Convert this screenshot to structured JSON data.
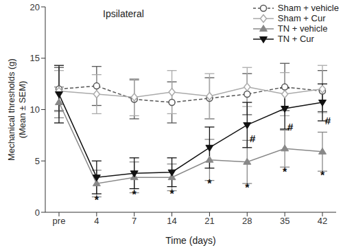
{
  "chart_data": {
    "type": "line",
    "title": "Ipsilateral",
    "x_label": "Time (days)",
    "y_label": [
      "Mechanical thresholds (g)",
      "(Mean ± SEM)"
    ],
    "categories": [
      "pre",
      "4",
      "7",
      "14",
      "21",
      "28",
      "35",
      "42"
    ],
    "ylim": [
      0,
      20
    ],
    "yticks": [
      0,
      5,
      10,
      15,
      20
    ],
    "grid": false,
    "legend": "top-right",
    "series": [
      {
        "name": "Sham + vehicle",
        "color": "#555555",
        "marker": "open-circle",
        "line_style": "dashed",
        "values": [
          12.0,
          12.3,
          11.0,
          10.7,
          11.1,
          11.5,
          12.2,
          11.8
        ],
        "errors": [
          2.1,
          1.9,
          1.9,
          2.0,
          2.0,
          2.0,
          2.3,
          2.0
        ]
      },
      {
        "name": "Sham + Cur",
        "color": "#aaaaaa",
        "marker": "open-diamond",
        "line_style": "solid",
        "values": [
          11.8,
          11.5,
          11.2,
          11.7,
          11.3,
          12.2,
          11.5,
          12.0
        ],
        "errors": [
          2.0,
          1.9,
          1.8,
          2.1,
          2.2,
          1.9,
          2.1,
          2.3
        ]
      },
      {
        "name": "TN + vehicle",
        "color": "#888888",
        "marker": "triangle-up",
        "line_style": "solid",
        "values": [
          10.7,
          2.8,
          3.4,
          3.4,
          5.1,
          4.9,
          6.2,
          5.9
        ],
        "errors": [
          1.5,
          1.3,
          1.5,
          1.3,
          2.0,
          2.1,
          1.8,
          1.9
        ]
      },
      {
        "name": "TN + Cur",
        "color": "#111111",
        "marker": "triangle-down",
        "line_style": "solid",
        "values": [
          11.5,
          3.4,
          3.8,
          3.9,
          6.3,
          8.5,
          10.1,
          10.7
        ],
        "errors": [
          2.8,
          1.6,
          1.5,
          1.4,
          2.0,
          2.2,
          2.0,
          1.8
        ]
      }
    ],
    "annotations": [
      {
        "text": "*",
        "x": "4",
        "y": 1.2
      },
      {
        "text": "*",
        "x": "7",
        "y": 1.7
      },
      {
        "text": "*",
        "x": "14",
        "y": 1.8
      },
      {
        "text": "*",
        "x": "21",
        "y": 2.8
      },
      {
        "text": "*",
        "x": "28",
        "y": 2.4
      },
      {
        "text": "*",
        "x": "35",
        "y": 3.9
      },
      {
        "text": "*",
        "x": "42",
        "y": 3.6
      },
      {
        "text": "#",
        "x": "28",
        "y": 7.2
      },
      {
        "text": "#",
        "x": "35",
        "y": 8.3
      },
      {
        "text": "#",
        "x": "42",
        "y": 8.9
      }
    ]
  }
}
